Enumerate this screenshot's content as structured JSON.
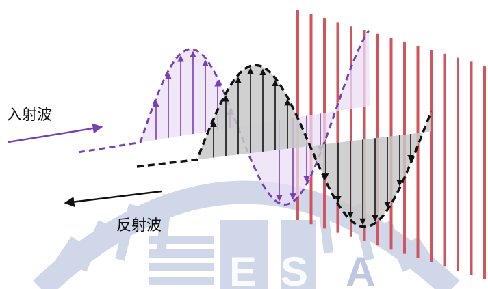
{
  "labels": {
    "incident_wave": "入射波",
    "reflected_wave": "反射波"
  },
  "colors": {
    "incident": "#7a3fb5",
    "incident_fill": "#e9def5",
    "reflected": "#111111",
    "reflected_fill": "#c8c8c8",
    "barrier": "#d2555e",
    "watermark": "#2f4d9a"
  },
  "watermark": {
    "letters": [
      "E",
      "S",
      "A"
    ]
  }
}
